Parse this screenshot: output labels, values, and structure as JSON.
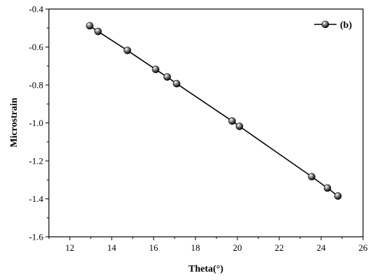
{
  "chart_data": {
    "type": "line",
    "xlabel": "Theta(°)",
    "ylabel": "Microstrain",
    "xlim": [
      11,
      26
    ],
    "ylim": [
      -1.6,
      -0.4
    ],
    "xticks": [
      "12",
      "14",
      "16",
      "18",
      "20",
      "22",
      "24",
      "26"
    ],
    "yticks": [
      "-0.4",
      "-0.6",
      "-0.8",
      "-1.0",
      "-1.2",
      "-1.4",
      "-1.6"
    ],
    "grid": false,
    "legend_position": "top-right",
    "series": [
      {
        "name": "(b)",
        "color": "#000000",
        "marker": "sphere",
        "points": [
          {
            "x": 12.95,
            "y": -0.488
          },
          {
            "x": 13.35,
            "y": -0.518
          },
          {
            "x": 14.75,
            "y": -0.618
          },
          {
            "x": 16.1,
            "y": -0.718
          },
          {
            "x": 16.65,
            "y": -0.758
          },
          {
            "x": 17.1,
            "y": -0.793
          },
          {
            "x": 19.75,
            "y": -0.99
          },
          {
            "x": 20.1,
            "y": -1.018
          },
          {
            "x": 23.55,
            "y": -1.283
          },
          {
            "x": 24.3,
            "y": -1.343
          },
          {
            "x": 24.8,
            "y": -1.385
          }
        ]
      }
    ]
  }
}
